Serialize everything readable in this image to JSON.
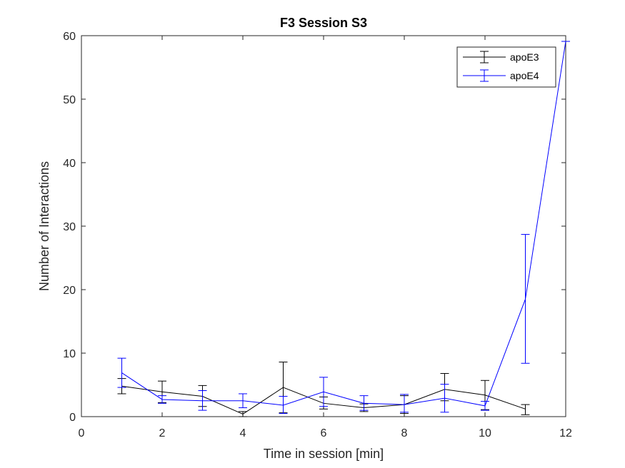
{
  "chart_data": {
    "type": "line",
    "title": "F3 Session S3",
    "xlabel": "Time in session [min]",
    "ylabel": "Number of Interactions",
    "xlim": [
      0,
      12
    ],
    "ylim": [
      0,
      60
    ],
    "xticks": [
      "0",
      "2",
      "4",
      "6",
      "8",
      "10",
      "12"
    ],
    "yticks": [
      "0",
      "10",
      "20",
      "30",
      "40",
      "50",
      "60"
    ],
    "grid": false,
    "legend_position": "top-right",
    "error_bars": true,
    "series": [
      {
        "name": "apoE3",
        "color": "#000000",
        "x": [
          1,
          2,
          3,
          4,
          5,
          6,
          7,
          8,
          9,
          10,
          11
        ],
        "y": [
          4.8,
          3.9,
          3.2,
          0.4,
          4.6,
          2.1,
          1.4,
          1.9,
          4.3,
          3.4,
          1.2
        ],
        "err_low": [
          3.6,
          2.2,
          1.6,
          0.0,
          0.6,
          1.2,
          0.8,
          0.5,
          2.5,
          1.1,
          0.3
        ],
        "err_high": [
          6.0,
          5.6,
          4.9,
          0.8,
          8.6,
          3.1,
          2.0,
          3.3,
          6.8,
          5.7,
          1.9
        ]
      },
      {
        "name": "apoE4",
        "color": "#0000ff",
        "x": [
          1,
          2,
          3,
          4,
          5,
          6,
          7,
          8,
          9,
          10,
          11,
          12
        ],
        "y": [
          6.9,
          2.7,
          2.5,
          2.5,
          1.8,
          3.9,
          2.1,
          1.9,
          2.9,
          1.7,
          18.5,
          59.1
        ],
        "err_low": [
          4.6,
          2.1,
          1.0,
          1.4,
          0.5,
          1.6,
          1.0,
          0.7,
          0.7,
          1.0,
          8.4,
          59.1
        ],
        "err_high": [
          9.2,
          3.3,
          4.1,
          3.6,
          3.2,
          6.2,
          3.3,
          3.5,
          5.1,
          2.4,
          28.7,
          59.1
        ]
      }
    ]
  }
}
